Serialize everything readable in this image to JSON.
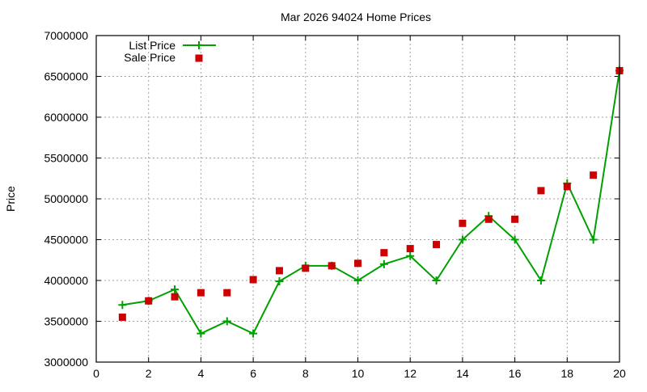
{
  "chart_data": {
    "type": "line",
    "title": "Mar 2026 94024 Home Prices",
    "xlabel": "",
    "ylabel": "Price",
    "xlim": [
      0,
      20
    ],
    "ylim": [
      3000000,
      7000000
    ],
    "x_ticks": [
      0,
      2,
      4,
      6,
      8,
      10,
      12,
      14,
      16,
      18,
      20
    ],
    "y_ticks": [
      3000000,
      3500000,
      4000000,
      4500000,
      5000000,
      5500000,
      6000000,
      6500000,
      7000000
    ],
    "grid": true,
    "legend_position": "top-left",
    "x": [
      1,
      2,
      3,
      4,
      5,
      6,
      7,
      8,
      9,
      10,
      11,
      12,
      13,
      14,
      15,
      16,
      17,
      18,
      19,
      20
    ],
    "series": [
      {
        "name": "List Price",
        "style": "linespoints",
        "marker": "plus",
        "color": "#00a000",
        "values": [
          3700000,
          3750000,
          3890000,
          3350000,
          3500000,
          3350000,
          3990000,
          4180000,
          4180000,
          4000000,
          4200000,
          4300000,
          4000000,
          4500000,
          4790000,
          4500000,
          4000000,
          5190000,
          4500000,
          6570000
        ]
      },
      {
        "name": "Sale Price",
        "style": "points",
        "marker": "square",
        "color": "#cc0000",
        "values": [
          3550000,
          3750000,
          3800000,
          3850000,
          3850000,
          4010000,
          4120000,
          4150000,
          4180000,
          4210000,
          4340000,
          4390000,
          4440000,
          4700000,
          4750000,
          4750000,
          5100000,
          5150000,
          5290000,
          6570000
        ]
      }
    ]
  }
}
